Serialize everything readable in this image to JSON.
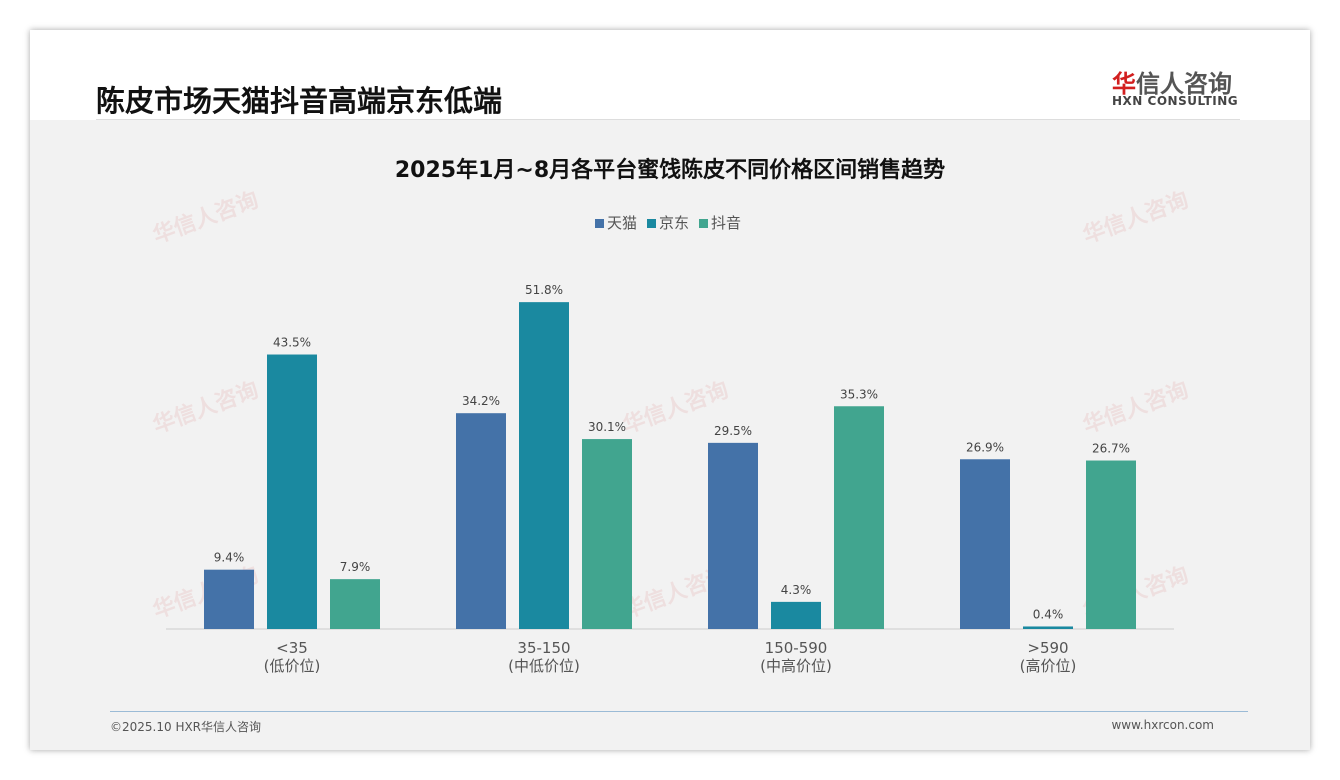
{
  "header": {
    "title": "陈皮市场天猫抖音高端京东低端",
    "logo_cn_red": "华",
    "logo_cn": "信人咨询",
    "logo_en": "HXN CONSULTING"
  },
  "footer": {
    "left": "©2025.10 HXR华信人咨询",
    "right": "www.hxrcon.com"
  },
  "chart_data": {
    "type": "bar",
    "title": "2025年1月~8月各平台蜜饯陈皮不同价格区间销售趋势",
    "categories": [
      "<35",
      "35-150",
      "150-590",
      ">590"
    ],
    "sublabels": [
      "(低价位)",
      "(中低价位)",
      "(中高价位)",
      "(高价位)"
    ],
    "series": [
      {
        "name": "天猫",
        "color": "#4472a8",
        "values": [
          9.4,
          34.2,
          29.5,
          26.9
        ]
      },
      {
        "name": "京东",
        "color": "#1a89a0",
        "values": [
          43.5,
          51.8,
          4.3,
          0.4
        ]
      },
      {
        "name": "抖音",
        "color": "#41a58f",
        "values": [
          7.9,
          30.1,
          35.3,
          26.7
        ]
      }
    ],
    "unit": "%",
    "legend": "top",
    "ylim": [
      0,
      55
    ]
  }
}
